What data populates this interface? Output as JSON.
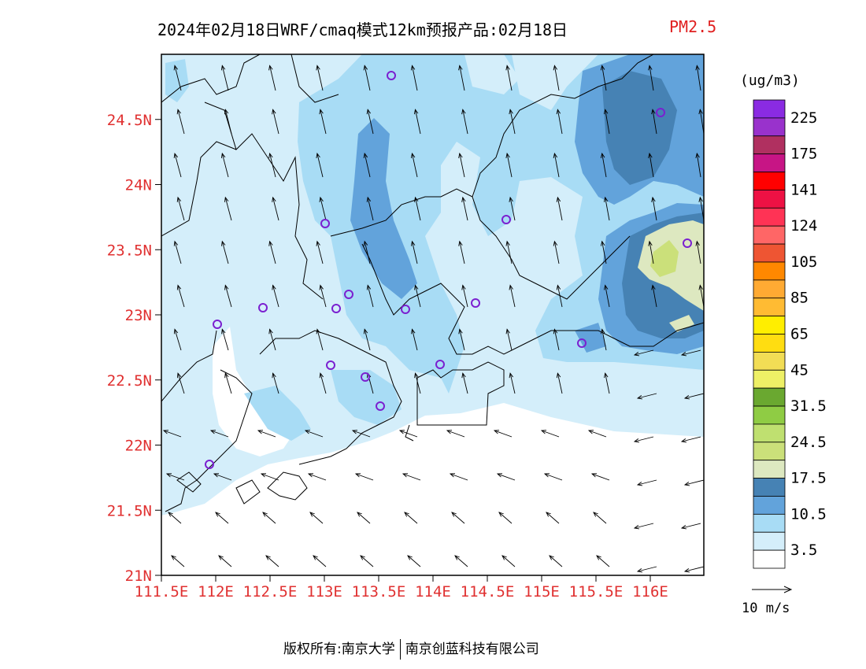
{
  "title": {
    "main": "2024年02月18日WRF/cmaq模式12km预报产品:02月18日",
    "pollutant": "PM2.5"
  },
  "map": {
    "lat_labels": [
      "24.5N",
      "24N",
      "23.5N",
      "23N",
      "22.5N",
      "22N",
      "21.5N",
      "21N"
    ],
    "lon_labels": [
      "111.5E",
      "112E",
      "112.5E",
      "113E",
      "113.5E",
      "114E",
      "114.5E",
      "115E",
      "115.5E",
      "116E"
    ],
    "lon_range": [
      111.5,
      116.5
    ],
    "lat_range": [
      21.0,
      25.0
    ],
    "label_color": "#e03030"
  },
  "legend": {
    "unit": "(ug/m3)",
    "labels": [
      "225",
      "175",
      "141",
      "124",
      "105",
      "85",
      "65",
      "45",
      "31.5",
      "24.5",
      "17.5",
      "10.5",
      "3.5"
    ],
    "colors_top_to_bottom": [
      "#8a2be2",
      "#9932cc",
      "#b03060",
      "#c71585",
      "#ff0000",
      "#ee1144",
      "#ff3355",
      "#ff6666",
      "#ee5533",
      "#ff8800",
      "#ffaa33",
      "#ffbb33",
      "#ffee00",
      "#ffdd11",
      "#f2dd55",
      "#eef066",
      "#6aa830",
      "#8fcc44",
      "#bfe070",
      "#cbe07a",
      "#dde8c0",
      "#4682b4",
      "#62a3db",
      "#a8dcf5",
      "#d4eefa",
      "#ffffff"
    ],
    "wind_label": "10 m/s"
  },
  "footer": {
    "left": "版权所有:南京大学",
    "right": "南京创蓝科技有限公司"
  }
}
